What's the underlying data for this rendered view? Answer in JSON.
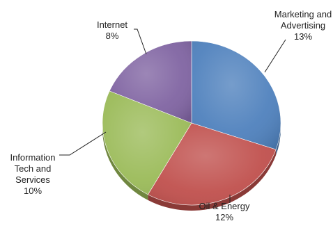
{
  "chart_data": {
    "type": "pie",
    "style": "3d",
    "legend": "none",
    "slices": [
      {
        "name": "Marketing and Advertising",
        "label_lines": [
          "Marketing and",
          "Advertising"
        ],
        "value": 13,
        "value_label": "13%",
        "color": "#4F81BD"
      },
      {
        "name": "Oil & Energy",
        "label_lines": [
          "Oil & Energy"
        ],
        "value": 12,
        "value_label": "12%",
        "color": "#C0504D"
      },
      {
        "name": "Information Tech and Services",
        "label_lines": [
          "Information",
          "Tech and",
          "Services"
        ],
        "value": 10,
        "value_label": "10%",
        "color": "#9BBB59"
      },
      {
        "name": "Internet",
        "label_lines": [
          "Internet"
        ],
        "value": 8,
        "value_label": "8%",
        "color": "#8064A2"
      }
    ]
  }
}
